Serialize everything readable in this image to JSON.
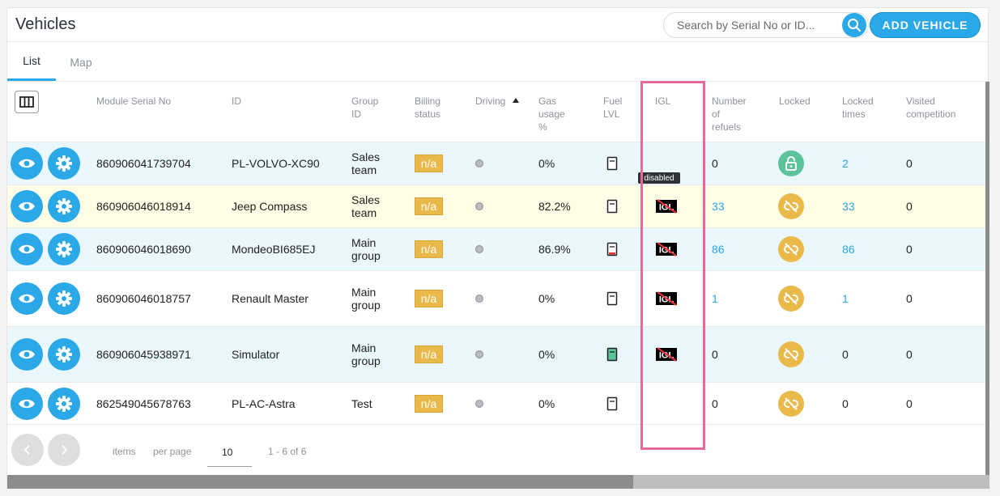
{
  "header": {
    "title": "Vehicles",
    "search_placeholder": "Search by Serial No or ID...",
    "add_button": "ADD VEHICLE"
  },
  "tabs": [
    {
      "label": "List",
      "active": true
    },
    {
      "label": "Map",
      "active": false
    }
  ],
  "columns": {
    "serial": "Module Serial No",
    "id": "ID",
    "group_l1": "Group",
    "group_l2": "ID",
    "billing_l1": "Billing",
    "billing_l2": "status",
    "driving": "Driving",
    "gas_l1": "Gas",
    "gas_l2": "usage",
    "gas_l3": "%",
    "fuel_l1": "Fuel",
    "fuel_l2": "LVL",
    "igl": "IGL",
    "refuels_l1": "Number",
    "refuels_l2": "of",
    "refuels_l3": "refuels",
    "locked": "Locked",
    "locked_times_l1": "Locked",
    "locked_times_l2": "times",
    "visited_l1": "Visited",
    "visited_l2": "competition"
  },
  "tooltip": "disabled",
  "rows": [
    {
      "serial": "860906041739704",
      "id": "PL-VOLVO-XC90",
      "group_l1": "Sales",
      "group_l2": "team",
      "billing": "n/a",
      "gas": "0%",
      "refuels": "0",
      "locked_times": "2",
      "visited": "0"
    },
    {
      "serial": "860906046018914",
      "id": "Jeep Compass",
      "group_l1": "Sales",
      "group_l2": "team",
      "billing": "n/a",
      "gas": "82.2%",
      "refuels": "33",
      "locked_times": "33",
      "visited": "0"
    },
    {
      "serial": "860906046018690",
      "id": "MondeoBI685EJ",
      "group_l1": "Main",
      "group_l2": "group",
      "billing": "n/a",
      "gas": "86.9%",
      "refuels": "86",
      "locked_times": "86",
      "visited": "0"
    },
    {
      "serial": "860906046018757",
      "id": "Renault Master",
      "group_l1": "Main",
      "group_l2": "group",
      "billing": "n/a",
      "gas": "0%",
      "refuels": "1",
      "locked_times": "1",
      "visited": "0"
    },
    {
      "serial": "860906045938971",
      "id": "Simulator",
      "group_l1": "Main",
      "group_l2": "group",
      "billing": "n/a",
      "gas": "0%",
      "refuels": "0",
      "locked_times": "0",
      "visited": "0"
    },
    {
      "serial": "862549045678763",
      "id": "PL-AC-Astra",
      "group_l1": "Test",
      "group_l2": "",
      "billing": "n/a",
      "gas": "0%",
      "refuels": "0",
      "locked_times": "0",
      "visited": "0"
    }
  ],
  "footer": {
    "items": "items",
    "per_page": "per page",
    "per_page_value": "10",
    "range": "1 - 6 of 6"
  },
  "colors": {
    "accent": "#2ba8e8",
    "badge": "#e9b949",
    "row_blue": "#eaf7fd",
    "row_yellow": "#fffde6",
    "locked_green": "#5cc39a",
    "unlocked_yellow": "#e9b949",
    "highlight": "#e8689a"
  }
}
